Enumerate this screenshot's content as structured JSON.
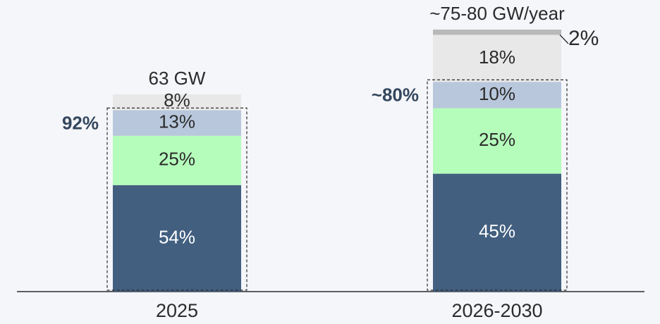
{
  "chart_data": {
    "type": "bar",
    "stacked": true,
    "categories": [
      "2025",
      "2026-2030"
    ],
    "series": [
      {
        "values": [
          54,
          45
        ],
        "labels": [
          "54%",
          "45%"
        ]
      },
      {
        "values": [
          25,
          25
        ],
        "labels": [
          "25%",
          "25%"
        ]
      },
      {
        "values": [
          13,
          10
        ],
        "labels": [
          "13%",
          "10%"
        ]
      },
      {
        "values": [
          8,
          18
        ],
        "labels": [
          "8%",
          "18%"
        ]
      },
      {
        "values": [
          0,
          2
        ],
        "labels": [
          "",
          "2%"
        ]
      }
    ],
    "totals": [
      "63 GW",
      "~75-80 GW/year"
    ],
    "bracket_labels": [
      "92%",
      "~80%"
    ],
    "colors": [
      "#425f80",
      "#b5fdbb",
      "#b8c7dc",
      "#e8e8e8",
      "#b9b9b9"
    ],
    "label_colors": [
      "#ffffff",
      "#2b2b2b",
      "#2b2b2b",
      "#2b2b2b",
      "#2b2b2b"
    ]
  }
}
